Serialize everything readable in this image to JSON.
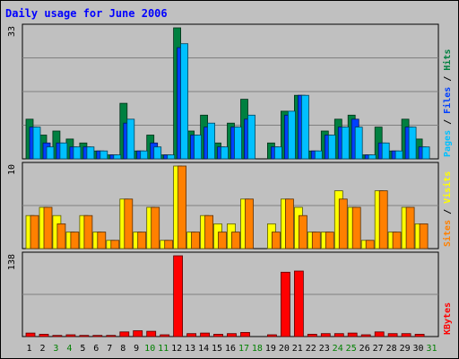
{
  "chart_data": {
    "type": "bar",
    "title": "Daily usage for June 2006",
    "categories": [
      "1",
      "2",
      "3",
      "4",
      "5",
      "6",
      "7",
      "8",
      "9",
      "10",
      "11",
      "12",
      "13",
      "14",
      "15",
      "16",
      "17",
      "18",
      "19",
      "20",
      "21",
      "22",
      "23",
      "24",
      "25",
      "26",
      "27",
      "28",
      "29",
      "30",
      "31"
    ],
    "weekend_days": [
      "3",
      "4",
      "10",
      "11",
      "17",
      "18",
      "24",
      "25",
      "31"
    ],
    "colors": {
      "title": "#0000ff",
      "weekday_label": "#000000",
      "weekend_label": "#008000",
      "hits": "#008040",
      "files": "#0040ff",
      "pages": "#00c0ff",
      "visits": "#ffff00",
      "sites": "#ff8000",
      "kbytes": "#ff0000"
    },
    "panels": [
      {
        "name": "hits_files_pages",
        "ymax_label": "33",
        "ymax": 33,
        "legend": [
          {
            "text": "Hits",
            "color": "#008040"
          },
          {
            "text": "Files",
            "color": "#0040ff"
          },
          {
            "text": "Pages",
            "color": "#00c0ff"
          }
        ],
        "series": [
          {
            "name": "Hits",
            "color": "#008040",
            "values": [
              10,
              6,
              7,
              5,
              4,
              2,
              1,
              14,
              2,
              6,
              1,
              33,
              7,
              11,
              4,
              9,
              15,
              0,
              4,
              12,
              16,
              2,
              7,
              10,
              11,
              1,
              8,
              2,
              10,
              5,
              0
            ]
          },
          {
            "name": "Files",
            "color": "#0040ff",
            "values": [
              8,
              4,
              4,
              3,
              3,
              2,
              1,
              9,
              2,
              4,
              1,
              28,
              6,
              8,
              3,
              8,
              10,
              0,
              3,
              11,
              16,
              2,
              6,
              8,
              10,
              1,
              4,
              2,
              8,
              3,
              0
            ]
          },
          {
            "name": "Pages",
            "color": "#00c0ff",
            "values": [
              8,
              3,
              4,
              3,
              3,
              2,
              1,
              10,
              2,
              3,
              1,
              29,
              6,
              9,
              3,
              8,
              11,
              0,
              3,
              12,
              16,
              2,
              6,
              8,
              8,
              1,
              4,
              2,
              8,
              3,
              0
            ]
          }
        ]
      },
      {
        "name": "sites_visits",
        "ymax_label": "10",
        "ymax": 10,
        "legend": [
          {
            "text": "Visits",
            "color": "#ffff00"
          },
          {
            "text": "Sites",
            "color": "#ff8000"
          }
        ],
        "series": [
          {
            "name": "Visits",
            "color": "#ffff00",
            "values": [
              4,
              5,
              4,
              2,
              4,
              2,
              1,
              6,
              2,
              5,
              1,
              10,
              2,
              4,
              3,
              3,
              6,
              0,
              3,
              6,
              5,
              2,
              2,
              7,
              5,
              1,
              7,
              2,
              5,
              3,
              0
            ]
          },
          {
            "name": "Sites",
            "color": "#ff8000",
            "values": [
              4,
              5,
              3,
              2,
              4,
              2,
              1,
              6,
              2,
              5,
              1,
              10,
              2,
              4,
              2,
              2,
              6,
              0,
              2,
              6,
              4,
              2,
              2,
              6,
              5,
              1,
              7,
              2,
              5,
              3,
              0
            ]
          }
        ]
      },
      {
        "name": "kbytes",
        "ymax_label": "138",
        "ymax": 138,
        "legend": [
          {
            "text": "KBytes",
            "color": "#ff0000"
          }
        ],
        "series": [
          {
            "name": "KBytes",
            "color": "#ff0000",
            "values": [
              6,
              4,
              2,
              3,
              2,
              2,
              2,
              8,
              10,
              9,
              3,
              138,
              5,
              6,
              4,
              5,
              7,
              0,
              3,
              110,
              112,
              4,
              5,
              5,
              6,
              3,
              8,
              5,
              5,
              4,
              0
            ]
          }
        ]
      }
    ],
    "grid": true
  }
}
